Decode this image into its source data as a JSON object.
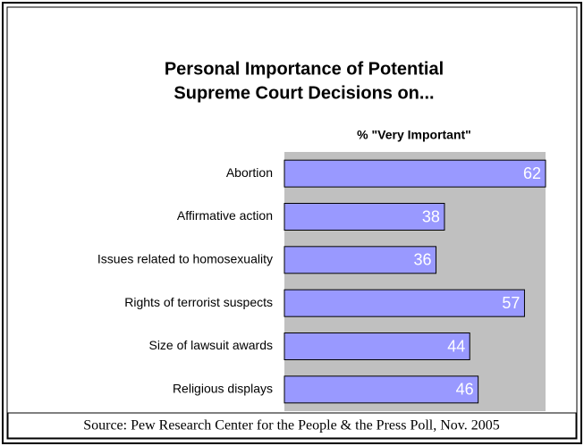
{
  "chart_data": {
    "type": "bar",
    "orientation": "horizontal",
    "title": [
      "Personal Importance of Potential",
      "Supreme Court Decisions on..."
    ],
    "subtitle": "% \"Very Important\"",
    "categories": [
      "Abortion",
      "Affirmative action",
      "Issues related to homosexuality",
      "Rights of terrorist suspects",
      "Size of lawsuit awards",
      "Religious displays"
    ],
    "values": [
      62,
      38,
      36,
      57,
      44,
      46
    ],
    "color": "#9999ff",
    "xlim": [
      0,
      62
    ],
    "source": "Source: Pew Research Center for the People & the Press Poll, Nov. 2005"
  }
}
